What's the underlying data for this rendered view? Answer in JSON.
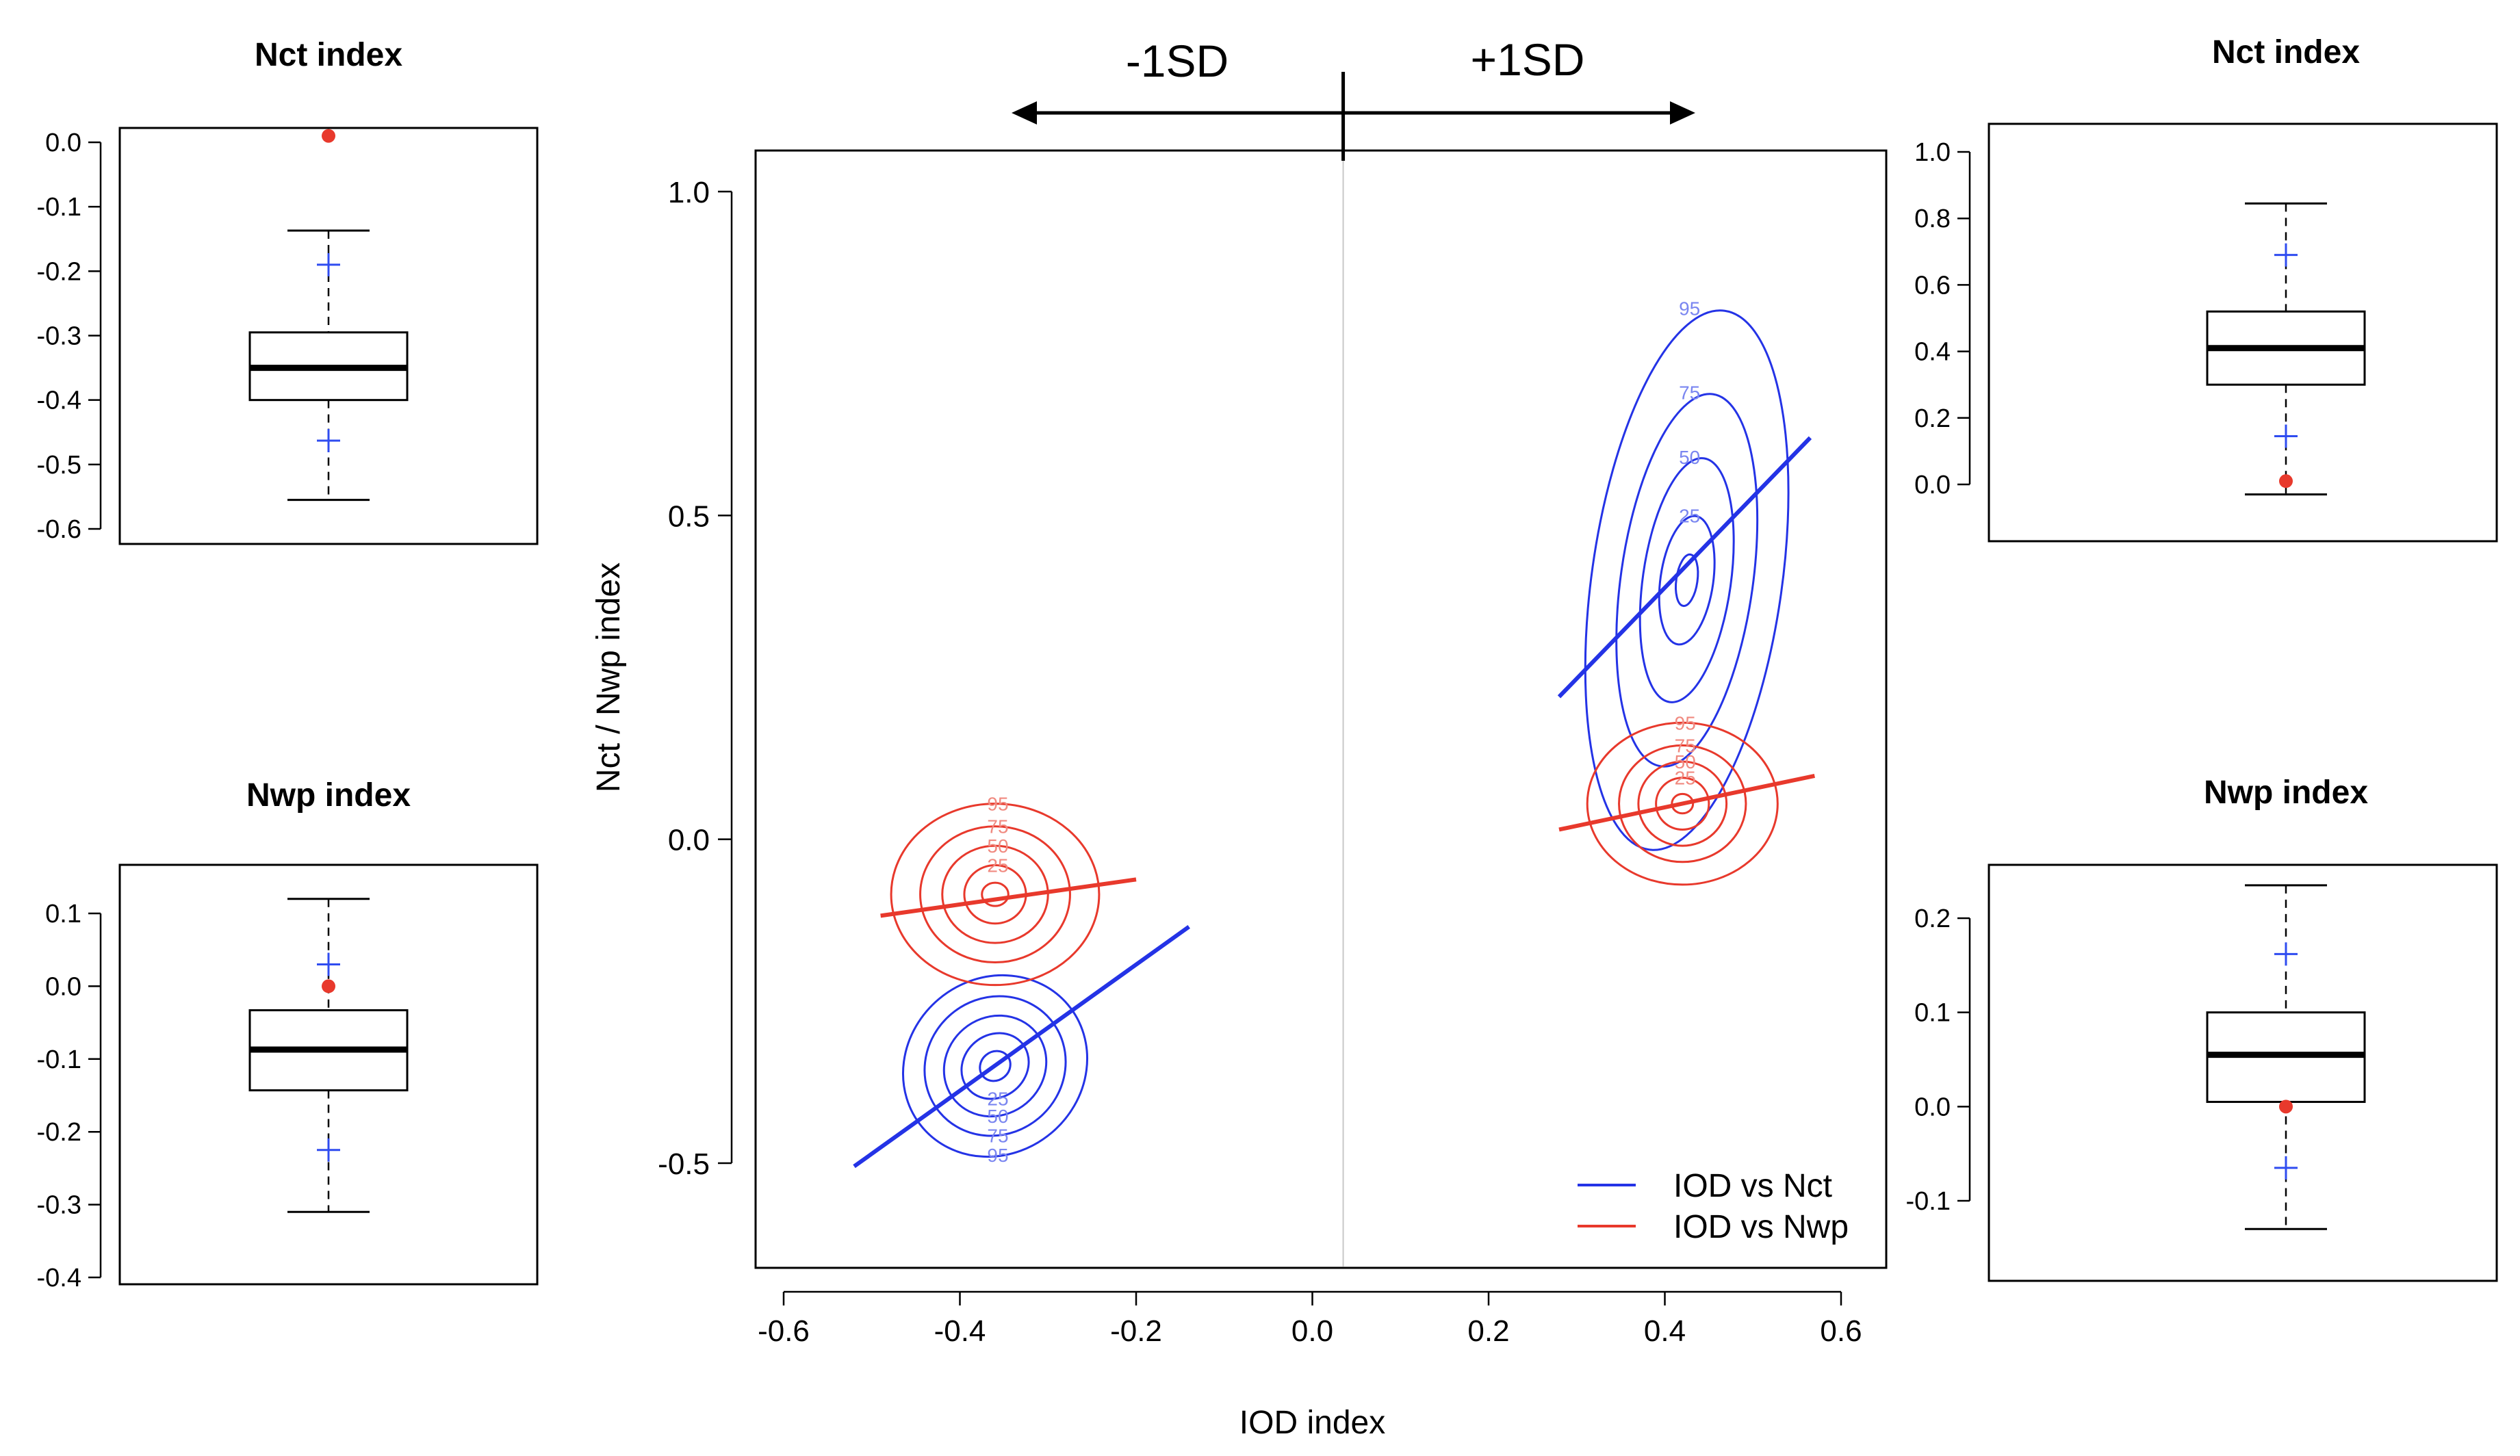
{
  "colors": {
    "nct": "#2433e6",
    "nwp": "#e8392c",
    "nct_light": "#7a86f0",
    "nwp_light": "#f08a80",
    "outlier": "#e8392c",
    "plus": "#2f4cf0"
  },
  "chart_data": [
    {
      "id": "left_top",
      "type": "boxplot",
      "title": "Nct index",
      "ylim": [
        -0.6,
        0.0
      ],
      "yticks": [
        "0.0",
        "-0.1",
        "-0.2",
        "-0.3",
        "-0.4",
        "-0.5",
        "-0.6"
      ],
      "whisker_low": -0.555,
      "q1": -0.4,
      "median": -0.35,
      "q3": -0.295,
      "whisker_high": -0.137,
      "outlier": 0.01,
      "plus_markers": [
        -0.19,
        -0.463
      ]
    },
    {
      "id": "left_bottom",
      "type": "boxplot",
      "title": "Nwp index",
      "ylim": [
        -0.4,
        0.1
      ],
      "yticks": [
        "0.1",
        "0.0",
        "-0.1",
        "-0.2",
        "-0.3",
        "-0.4"
      ],
      "whisker_low": -0.31,
      "q1": -0.143,
      "median": -0.087,
      "q3": -0.033,
      "whisker_high": 0.12,
      "outlier": 0.0,
      "plus_markers": [
        0.03,
        -0.225
      ]
    },
    {
      "id": "right_top",
      "type": "boxplot",
      "title": "Nct index",
      "ylim": [
        0.0,
        1.0
      ],
      "yticks": [
        "1.0",
        "0.8",
        "0.6",
        "0.4",
        "0.2",
        "0.0"
      ],
      "whisker_low": -0.03,
      "q1": 0.3,
      "median": 0.41,
      "q3": 0.52,
      "whisker_high": 0.845,
      "outlier": 0.01,
      "plus_markers": [
        0.69,
        0.145
      ]
    },
    {
      "id": "right_bottom",
      "type": "boxplot",
      "title": "Nwp index",
      "ylim": [
        -0.1,
        0.2
      ],
      "yticks": [
        "0.2",
        "0.1",
        "0.0",
        "-0.1"
      ],
      "whisker_low": -0.13,
      "q1": 0.005,
      "median": 0.055,
      "q3": 0.1,
      "whisker_high": 0.235,
      "outlier": 0.0,
      "plus_markers": [
        0.162,
        -0.065
      ]
    },
    {
      "id": "main",
      "type": "scatter",
      "xlabel": "IOD index",
      "ylabel": "Nct / Nwp index",
      "xlim": [
        -0.62,
        0.65
      ],
      "ylim": [
        -0.66,
        1.06
      ],
      "xticks": [
        "-0.6",
        "-0.4",
        "-0.2",
        "0.0",
        "0.2",
        "0.4",
        "0.6"
      ],
      "yticks": [
        "1.0",
        "0.5",
        "0.0",
        "-0.5"
      ],
      "vertical_line_x": 0.035,
      "sd_labels": {
        "minus": "-1SD",
        "plus": "+1SD"
      },
      "legend": [
        {
          "label": "IOD vs Nct",
          "series": "nct"
        },
        {
          "label": "IOD vs Nwp",
          "series": "nwp"
        }
      ],
      "regression_lines": [
        {
          "series": "nct",
          "x": [
            -0.52,
            -0.14
          ],
          "y": [
            -0.505,
            -0.135
          ]
        },
        {
          "series": "nwp",
          "x": [
            -0.49,
            -0.2
          ],
          "y": [
            -0.118,
            -0.062
          ]
        },
        {
          "series": "nct",
          "x": [
            0.28,
            0.565
          ],
          "y": [
            0.22,
            0.62
          ]
        },
        {
          "series": "nwp",
          "x": [
            0.28,
            0.57
          ],
          "y": [
            0.015,
            0.098
          ]
        }
      ],
      "contours": [
        {
          "series": "nct",
          "center": [
            -0.36,
            -0.35
          ],
          "rx": [
            0.018,
            0.04,
            0.06,
            0.082,
            0.108
          ],
          "ry": [
            0.022,
            0.048,
            0.075,
            0.105,
            0.135
          ],
          "angle": 40,
          "labels": [
            "25",
            "50",
            "75",
            "95"
          ]
        },
        {
          "series": "nwp",
          "center": [
            -0.36,
            -0.085
          ],
          "rx": [
            0.015,
            0.035,
            0.06,
            0.085,
            0.118
          ],
          "ry": [
            0.018,
            0.045,
            0.075,
            0.105,
            0.14
          ],
          "angle": 0,
          "labels": [
            "25",
            "50",
            "75",
            "95"
          ]
        },
        {
          "series": "nct",
          "center": [
            0.425,
            0.4
          ],
          "rx": [
            0.012,
            0.03,
            0.05,
            0.075,
            0.108
          ],
          "ry": [
            0.04,
            0.1,
            0.19,
            0.29,
            0.42
          ],
          "angle": -8,
          "labels": [
            "25",
            "50",
            "75",
            "95"
          ]
        },
        {
          "series": "nwp",
          "center": [
            0.42,
            0.055
          ],
          "rx": [
            0.012,
            0.03,
            0.05,
            0.072,
            0.108
          ],
          "ry": [
            0.015,
            0.04,
            0.065,
            0.09,
            0.125
          ],
          "angle": 0,
          "labels": [
            "25",
            "50",
            "75",
            "95"
          ]
        }
      ]
    }
  ]
}
